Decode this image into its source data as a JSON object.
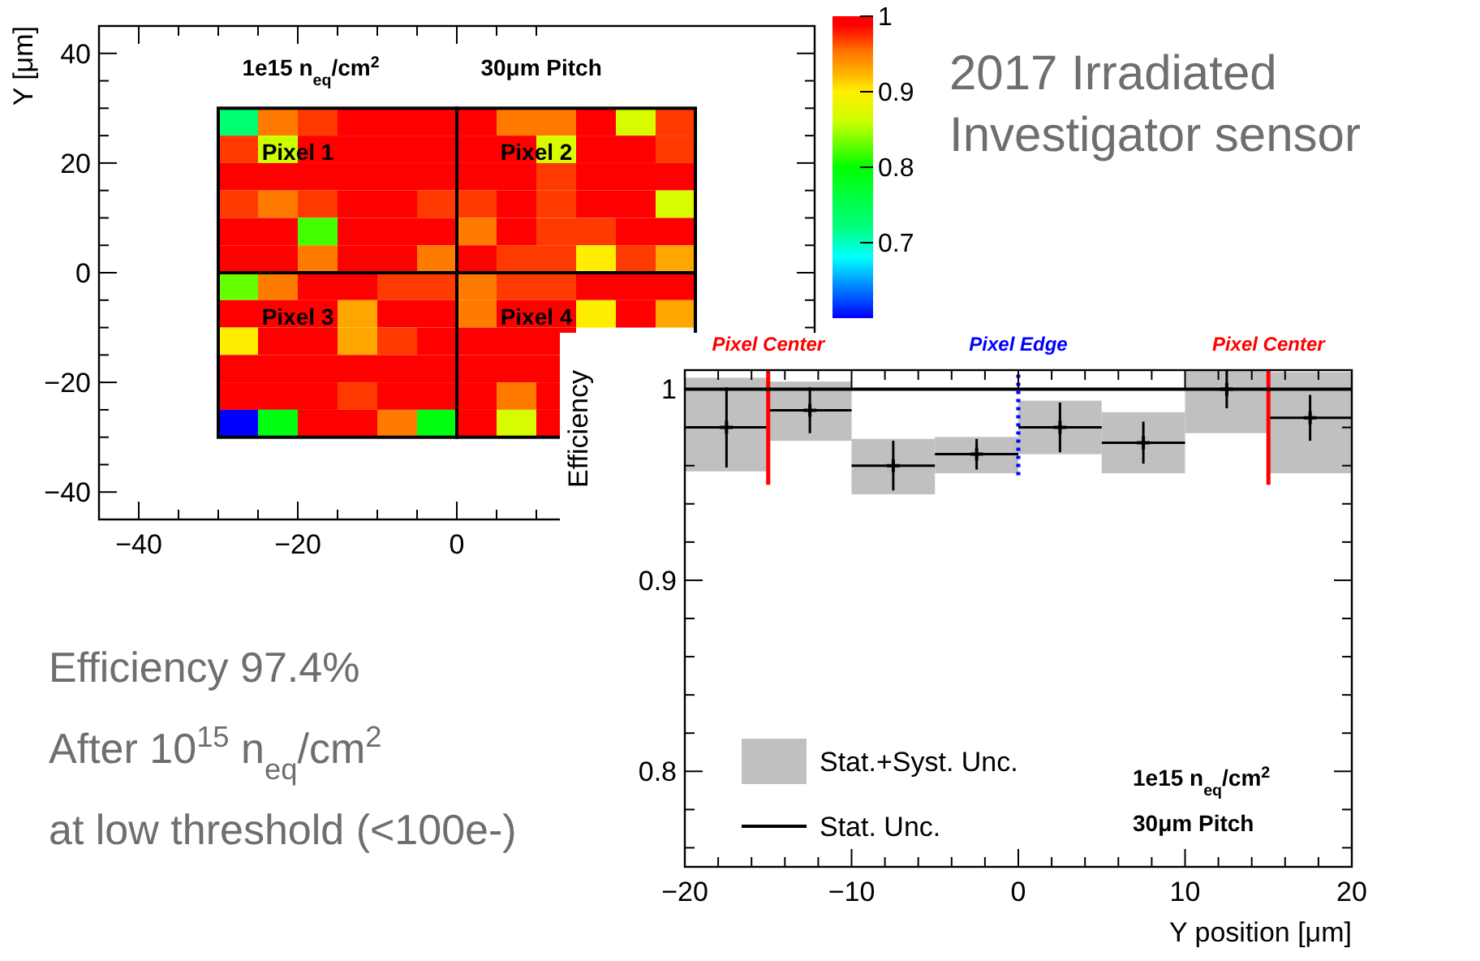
{
  "chart_data": [
    {
      "type": "heatmap",
      "ylabel": "Y [μm]",
      "x": [
        -27.5,
        -22.5,
        -17.5,
        -12.5,
        -7.5,
        -2.5,
        2.5,
        7.5,
        12.5,
        17.5,
        22.5,
        27.5
      ],
      "y": [
        27.5,
        22.5,
        17.5,
        12.5,
        7.5,
        2.5,
        -2.5,
        -7.5,
        -12.5,
        -17.5,
        -22.5,
        -27.5
      ],
      "cells": [
        [
          0.73,
          0.95,
          0.97,
          0.99,
          0.99,
          0.99,
          0.99,
          0.95,
          0.95,
          0.99,
          0.87,
          0.97
        ],
        [
          0.97,
          0.86,
          0.99,
          0.99,
          0.99,
          0.99,
          0.99,
          0.99,
          0.87,
          0.99,
          0.99,
          0.97
        ],
        [
          0.99,
          0.99,
          0.99,
          0.99,
          0.99,
          0.99,
          0.99,
          0.99,
          0.97,
          0.99,
          0.99,
          0.99
        ],
        [
          0.97,
          0.95,
          0.97,
          0.99,
          0.99,
          0.97,
          0.97,
          0.99,
          0.97,
          0.99,
          0.99,
          0.87
        ],
        [
          0.99,
          0.99,
          0.82,
          0.99,
          0.99,
          0.99,
          0.95,
          0.99,
          0.97,
          0.97,
          0.99,
          0.99
        ],
        [
          0.99,
          0.99,
          0.95,
          0.99,
          0.99,
          0.95,
          0.99,
          0.97,
          0.97,
          0.9,
          0.97,
          0.93
        ],
        [
          0.83,
          0.95,
          0.99,
          0.99,
          0.97,
          0.97,
          0.95,
          0.97,
          0.97,
          0.99,
          0.99,
          0.99
        ],
        [
          0.99,
          0.99,
          0.99,
          0.93,
          0.99,
          0.99,
          0.95,
          0.99,
          0.99,
          0.9,
          0.99,
          0.93
        ],
        [
          0.9,
          0.99,
          0.99,
          0.93,
          0.97,
          0.99,
          0.99,
          0.99,
          0.99,
          null,
          null,
          null
        ],
        [
          0.99,
          0.99,
          0.99,
          0.99,
          0.99,
          0.99,
          0.99,
          0.99,
          0.99,
          null,
          null,
          null
        ],
        [
          0.99,
          0.99,
          0.99,
          0.97,
          0.99,
          0.99,
          0.99,
          0.95,
          0.99,
          null,
          null,
          null
        ],
        [
          0.6,
          0.79,
          0.99,
          0.99,
          0.95,
          0.79,
          0.99,
          0.87,
          0.99,
          null,
          null,
          null
        ]
      ],
      "xlim": [
        -45,
        45
      ],
      "ylim": [
        -45,
        45
      ],
      "xticks": [
        -40,
        {
          "value": -35,
          "label": null
        },
        {
          "value": -30,
          "label": null
        },
        {
          "value": -25,
          "label": null
        },
        -20,
        {
          "value": -15,
          "label": null
        },
        {
          "value": -10,
          "label": null
        },
        {
          "value": -5,
          "label": null
        },
        0,
        {
          "value": 5,
          "label": null
        },
        {
          "value": 10,
          "label": null
        }
      ],
      "yticks": [
        -40,
        {
          "value": -35,
          "label": null
        },
        {
          "value": -30,
          "label": null
        },
        {
          "value": -25,
          "label": null
        },
        -20,
        {
          "value": -15,
          "label": null
        },
        {
          "value": -10,
          "label": null
        },
        {
          "value": -5,
          "label": null
        },
        0,
        {
          "value": 5,
          "label": null
        },
        {
          "value": 10,
          "label": null
        },
        {
          "value": 15,
          "label": null
        },
        20,
        {
          "value": 25,
          "label": null
        },
        {
          "value": 30,
          "label": null
        },
        {
          "value": 35,
          "label": null
        },
        40
      ],
      "clim": [
        0.6,
        1
      ],
      "cticks": [
        0.7,
        0.8,
        0.9,
        1
      ],
      "annotations": [
        "1e15 n$_{eq}$/cm$^{2}$",
        "30μm Pitch",
        "Pixel 1",
        "Pixel 2",
        "Pixel 3",
        "Pixel 4"
      ]
    },
    {
      "type": "bar",
      "xlabel": "Y position [μm]",
      "ylabel": "Efficiency",
      "xlim": [
        -20,
        20
      ],
      "ylim": [
        0.75,
        1.01
      ],
      "xticks": [
        -20,
        {
          "value": -18,
          "label": null
        },
        {
          "value": -16,
          "label": null
        },
        {
          "value": -14,
          "label": null
        },
        {
          "value": -12,
          "label": null
        },
        -10,
        {
          "value": -8,
          "label": null
        },
        {
          "value": -6,
          "label": null
        },
        {
          "value": -4,
          "label": null
        },
        {
          "value": -2,
          "label": null
        },
        0,
        {
          "value": 2,
          "label": null
        },
        {
          "value": 4,
          "label": null
        },
        {
          "value": 6,
          "label": null
        },
        {
          "value": 8,
          "label": null
        },
        10,
        {
          "value": 12,
          "label": null
        },
        {
          "value": 14,
          "label": null
        },
        {
          "value": 16,
          "label": null
        },
        {
          "value": 18,
          "label": null
        },
        20
      ],
      "yticks": [
        {
          "value": 0.76,
          "label": null
        },
        {
          "value": 0.78,
          "label": null
        },
        0.8,
        {
          "value": 0.82,
          "label": null
        },
        {
          "value": 0.84,
          "label": null
        },
        {
          "value": 0.86,
          "label": null
        },
        {
          "value": 0.88,
          "label": null
        },
        0.9,
        {
          "value": 0.92,
          "label": null
        },
        {
          "value": 0.94,
          "label": null
        },
        {
          "value": 0.96,
          "label": null
        },
        {
          "value": 0.98,
          "label": null
        },
        1
      ],
      "legend": "bottom left",
      "series": [
        {
          "type": "bar",
          "name": "Stat.+Syst. Unc.",
          "color": "#c0c0c0",
          "x": [
            -17.5,
            -12.5,
            -7.5,
            -2.5,
            2.5,
            7.5,
            12.5,
            17.5
          ],
          "base": [
            0.957,
            0.973,
            0.945,
            0.956,
            0.966,
            0.956,
            0.977,
            0.956
          ],
          "values": [
            0.049,
            0.031,
            0.029,
            0.019,
            0.028,
            0.032,
            0.033,
            0.053
          ]
        },
        {
          "type": "scatter",
          "name": "Stat. Unc.",
          "color": "#000000",
          "marker": "cross",
          "x": [
            -17.5,
            -12.5,
            -7.5,
            -2.5,
            2.5,
            7.5,
            12.5,
            17.5
          ],
          "values": [
            0.98,
            0.989,
            0.96,
            0.966,
            0.98,
            0.972,
            1.0,
            0.985
          ],
          "errors": [
            0.021,
            0.012,
            0.013,
            0.008,
            0.013,
            0.011,
            0.01,
            0.012
          ],
          "xerrors": [
            2.5,
            2.5,
            2.5,
            2.5,
            2.5,
            2.5,
            2.5,
            2.5
          ]
        },
        {
          "type": "line",
          "color": "#ff0000",
          "x": [
            -15,
            -15
          ],
          "values": [
            0.95,
            1.01
          ]
        },
        {
          "type": "line",
          "color": "#0000ff",
          "line_style": "dotted",
          "x": [
            0,
            0
          ],
          "values": [
            0.955,
            1.01
          ]
        },
        {
          "type": "line",
          "color": "#ff0000",
          "x": [
            15,
            15
          ],
          "values": [
            0.95,
            1.01
          ]
        }
      ],
      "ref_lines": [
        {
          "axis": "y",
          "value": 1,
          "color": "#000000"
        }
      ],
      "annotations": [
        "Pixel Center",
        "Pixel Edge",
        "Pixel Center",
        "1e15 n$_{eq}$/cm$^{2}$",
        "30μm Pitch"
      ]
    },
    {
      "type": "other",
      "annotations": [
        "2017 Irradiated Investigator sensor",
        "Efficiency 97.4%",
        "After 10$^{15}$ n$_{eq}$/cm$^{2}$",
        "at low threshold (<100e-)"
      ]
    }
  ]
}
